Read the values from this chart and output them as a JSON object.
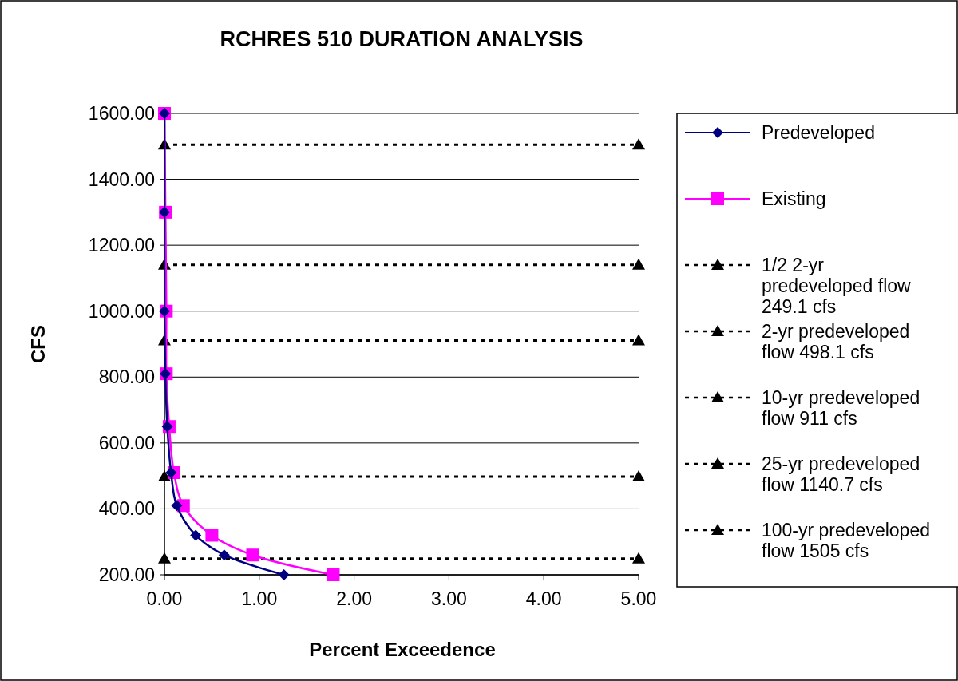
{
  "chart_data": {
    "type": "line",
    "title": "RCHRES 510 DURATION ANALYSIS",
    "xlabel": "Percent Exceedence",
    "ylabel": "CFS",
    "xlim": [
      0,
      5
    ],
    "ylim": [
      200,
      1600
    ],
    "xticks": [
      {
        "value": 0,
        "label": "0.00"
      },
      {
        "value": 1,
        "label": "1.00"
      },
      {
        "value": 2,
        "label": "2.00"
      },
      {
        "value": 3,
        "label": "3.00"
      },
      {
        "value": 4,
        "label": "4.00"
      },
      {
        "value": 5,
        "label": "5.00"
      }
    ],
    "yticks": [
      {
        "value": 200,
        "label": "200.00"
      },
      {
        "value": 400,
        "label": "400.00"
      },
      {
        "value": 600,
        "label": "600.00"
      },
      {
        "value": 800,
        "label": "800.00"
      },
      {
        "value": 1000,
        "label": "1000.00"
      },
      {
        "value": 1200,
        "label": "1200.00"
      },
      {
        "value": 1400,
        "label": "1400.00"
      },
      {
        "value": 1600,
        "label": "1600.00"
      }
    ],
    "grid": "y",
    "legend": "right",
    "series": [
      {
        "name": "Predeveloped",
        "color": "#000080",
        "marker": "diamond",
        "x": [
          0,
          0,
          0,
          0.01,
          0.03,
          0.07,
          0.13,
          0.33,
          0.63,
          1.26
        ],
        "values": [
          1600,
          1300,
          1000,
          810,
          650,
          510,
          410,
          320,
          260,
          200
        ]
      },
      {
        "name": "Existing",
        "color": "#ff00ff",
        "marker": "square",
        "x": [
          0,
          0.01,
          0.02,
          0.02,
          0.05,
          0.1,
          0.2,
          0.5,
          0.93,
          1.78
        ],
        "values": [
          1600,
          1300,
          1000,
          810,
          650,
          510,
          410,
          320,
          260,
          200
        ]
      },
      {
        "name": "1/2 2-yr predeveloped flow 249.1 cfs",
        "color": "#000000",
        "marker": "triangle",
        "line_style": "dotted",
        "x": [
          0,
          5
        ],
        "values": [
          249.1,
          249.1
        ]
      },
      {
        "name": "2-yr predeveloped flow 498.1 cfs",
        "color": "#000000",
        "marker": "triangle",
        "line_style": "dotted",
        "x": [
          0,
          5
        ],
        "values": [
          498.1,
          498.1
        ]
      },
      {
        "name": "10-yr predeveloped flow 911 cfs",
        "color": "#000000",
        "marker": "triangle",
        "line_style": "dotted",
        "x": [
          0,
          5
        ],
        "values": [
          911,
          911
        ]
      },
      {
        "name": "25-yr predeveloped flow 1140.7 cfs",
        "color": "#000000",
        "marker": "triangle",
        "line_style": "dotted",
        "x": [
          0,
          5
        ],
        "values": [
          1140.7,
          1140.7
        ]
      },
      {
        "name": "100-yr predeveloped flow 1505 cfs",
        "color": "#000000",
        "marker": "triangle",
        "line_style": "dotted",
        "x": [
          0,
          5
        ],
        "values": [
          1505,
          1505
        ]
      }
    ]
  }
}
